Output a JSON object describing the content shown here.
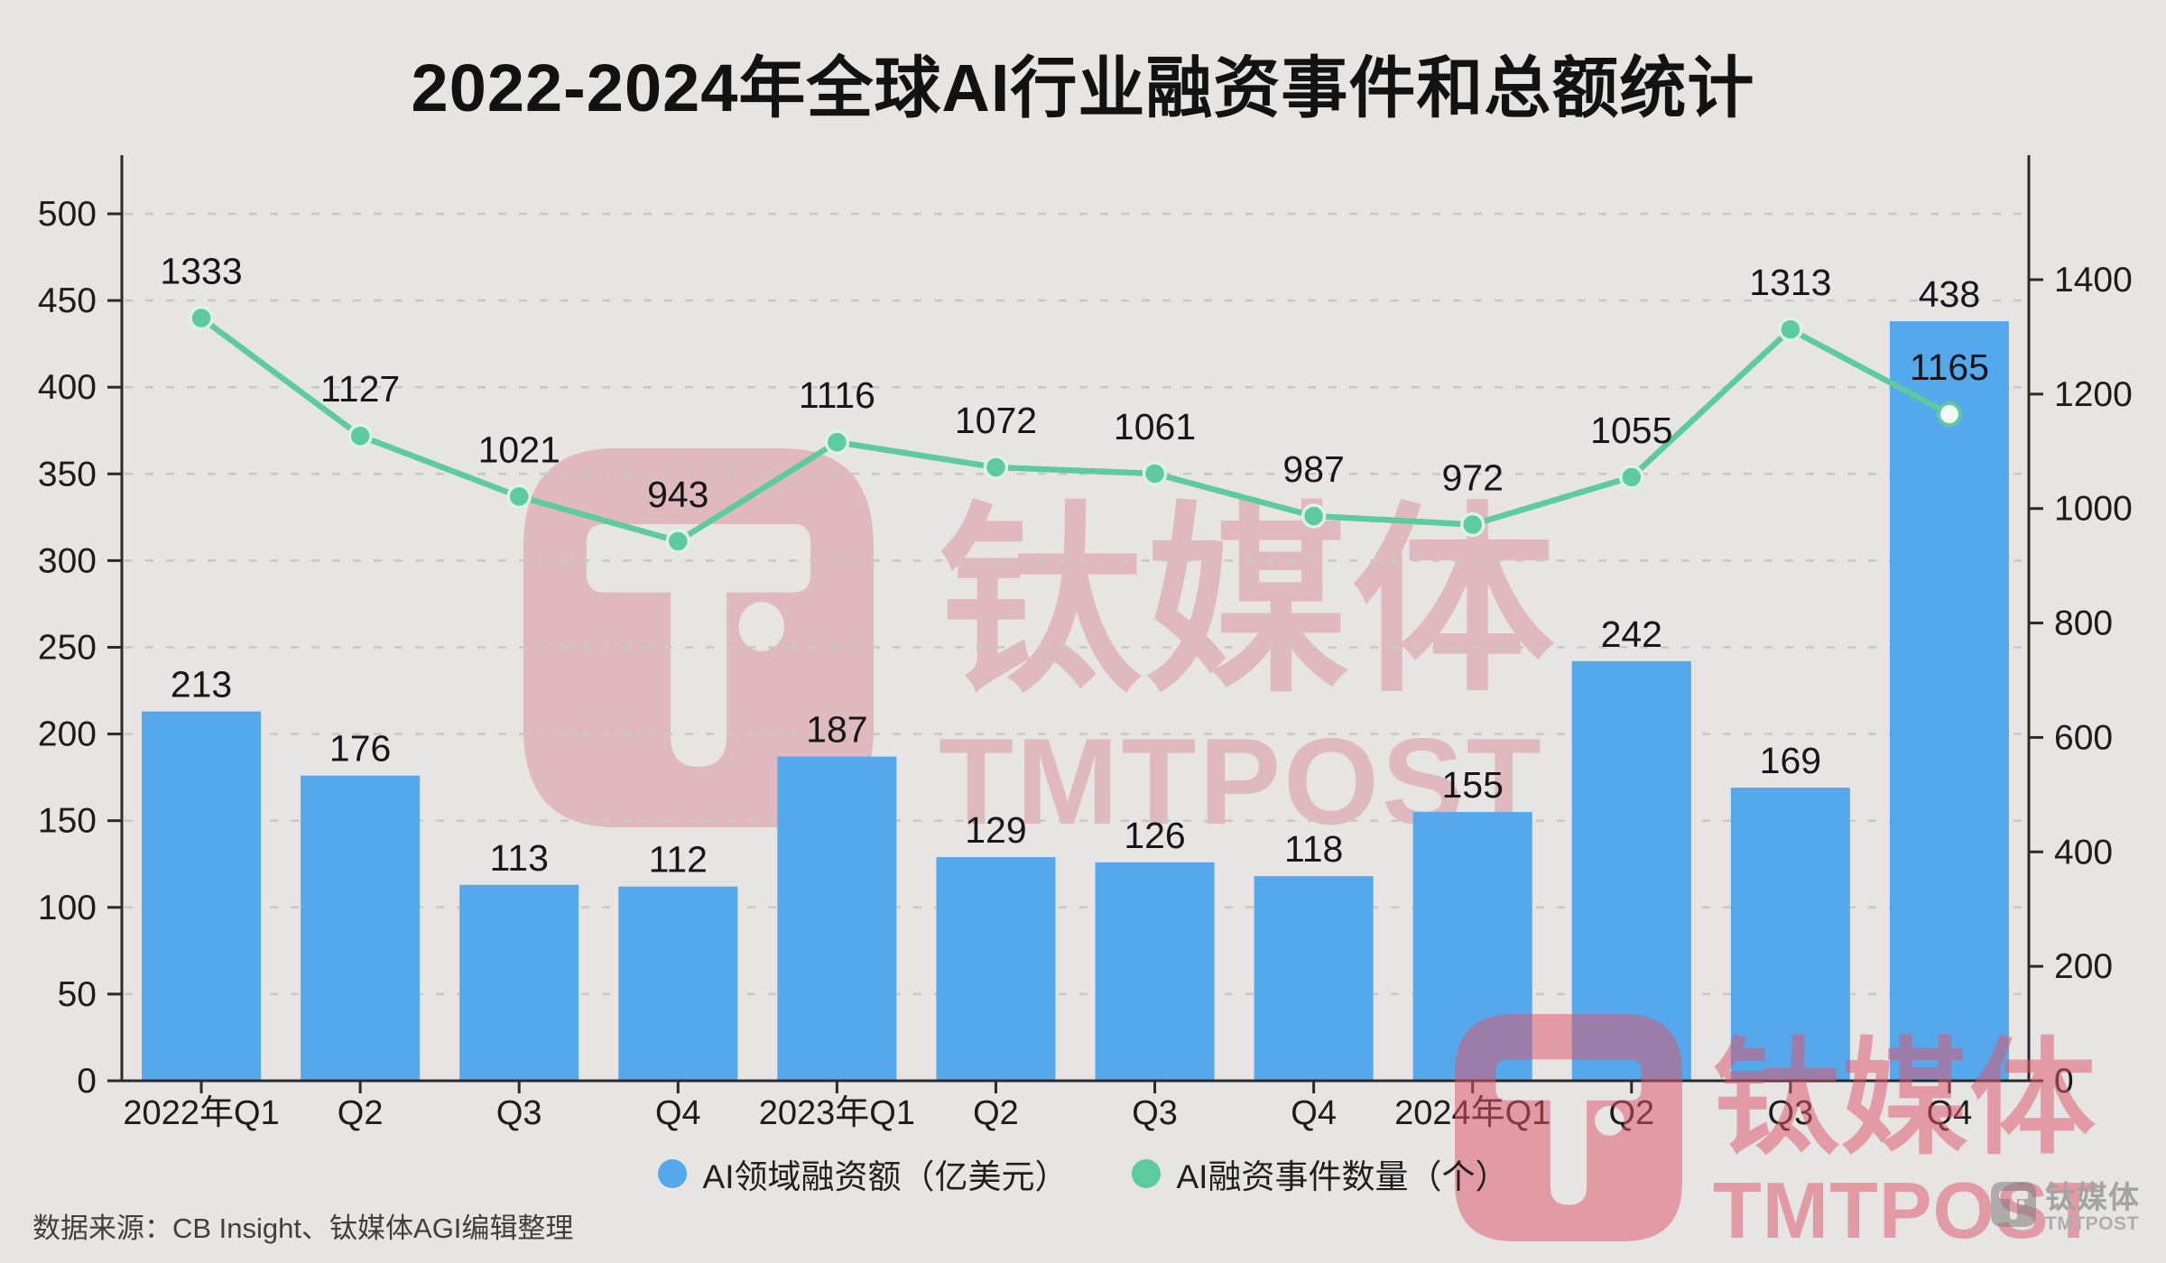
{
  "page": {
    "title": "2022-2024年全球AI行业融资事件和总额统计",
    "source": "数据来源：CB Insight、钛媒体AGI编辑整理"
  },
  "legend": {
    "items": [
      {
        "label": "AI领域融资额（亿美元）",
        "color": "#55a8ec"
      },
      {
        "label": "AI融资事件数量（个）",
        "color": "#5ecaa0"
      }
    ]
  },
  "watermark": {
    "brand_cn": "钛媒体",
    "brand_en": "TMTPOST"
  },
  "colors": {
    "background": "#e6e5e3",
    "bar_blue": "#55a8ec",
    "line_green": "#5ecaa0",
    "axis_dark": "#2a2a2a",
    "grid_gray": "#c9c8c5",
    "label_text": "#16161a",
    "watermark_pink_center": "rgba(216,125,138,0.42)",
    "watermark_pink_bottom": "rgba(223,85,106,0.52)",
    "watermark_gray": "#a3a3a3"
  },
  "chart_data": {
    "type": "bar",
    "title": "2022-2024年全球AI行业融资事件和总额统计",
    "categories": [
      "2022年Q1",
      "Q2",
      "Q3",
      "Q4",
      "2023年Q1",
      "Q2",
      "Q3",
      "Q4",
      "2024年Q1",
      "Q2",
      "Q3",
      "Q4"
    ],
    "series": [
      {
        "name": "AI领域融资额（亿美元）",
        "type": "bar",
        "axis": "left",
        "color": "#55a8ec",
        "values": [
          213,
          176,
          113,
          112,
          187,
          129,
          126,
          118,
          155,
          242,
          169,
          438
        ]
      },
      {
        "name": "AI融资事件数量（个）",
        "type": "line",
        "axis": "right",
        "color": "#5ecaa0",
        "values": [
          1333,
          1127,
          1021,
          943,
          1116,
          1072,
          1061,
          987,
          972,
          1055,
          1313,
          1165
        ]
      }
    ],
    "left_axis": {
      "min": 0,
      "max": 500,
      "step": 50,
      "ticks": [
        0,
        50,
        100,
        150,
        200,
        250,
        300,
        350,
        400,
        450,
        500
      ]
    },
    "right_axis": {
      "min": 0,
      "max": 1400,
      "step": 200,
      "ticks": [
        0,
        200,
        400,
        600,
        800,
        1000,
        1200,
        1400
      ]
    },
    "grid": "horizontal-dashed",
    "legend_position": "bottom",
    "data_labels": true
  }
}
